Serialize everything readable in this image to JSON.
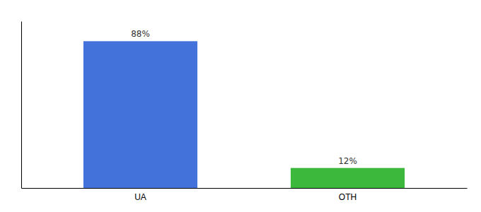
{
  "chart_data": {
    "type": "bar",
    "categories": [
      "UA",
      "OTH"
    ],
    "values": [
      88,
      12
    ],
    "value_labels": [
      "88%",
      "12%"
    ],
    "colors": [
      "#4472DB",
      "#3CB83C"
    ],
    "ylim": [
      0,
      100
    ],
    "data_labels": true,
    "tick_labels": "x"
  }
}
